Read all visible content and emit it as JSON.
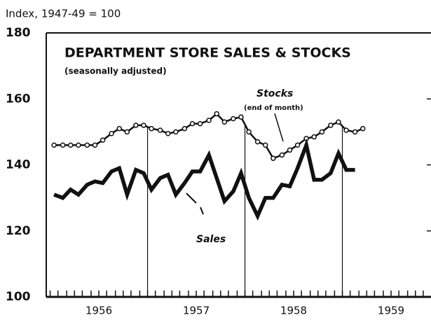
{
  "chart_data": {
    "type": "line",
    "title": "DEPARTMENT STORE SALES & STOCKS",
    "subtitle": "(seasonally adjusted)",
    "y_label": "Index, 1947-49 = 100",
    "annotations": {
      "stocks": "Stocks",
      "stocks_note": "(end of month)",
      "sales": "Sales"
    },
    "x": [
      1956.04,
      1956.13,
      1956.21,
      1956.29,
      1956.38,
      1956.46,
      1956.54,
      1956.63,
      1956.71,
      1956.79,
      1956.88,
      1956.96,
      1957.04,
      1957.13,
      1957.21,
      1957.29,
      1957.38,
      1957.46,
      1957.54,
      1957.63,
      1957.71,
      1957.79,
      1957.88,
      1957.96,
      1958.04,
      1958.13,
      1958.21,
      1958.29,
      1958.38,
      1958.46,
      1958.54,
      1958.63,
      1958.71,
      1958.79,
      1958.88,
      1958.96,
      1959.04,
      1959.13,
      1959.21
    ],
    "series": [
      {
        "name": "Stocks",
        "color": "#111111",
        "marker": "open-circle",
        "values": [
          146,
          146,
          146,
          146,
          146,
          146,
          147.5,
          149.5,
          151,
          150,
          152,
          152,
          151,
          150.5,
          149.5,
          150,
          151,
          152.5,
          152.5,
          153.5,
          155.5,
          153,
          154,
          154.5,
          150,
          147,
          146,
          142,
          143,
          144.5,
          146,
          148,
          148.5,
          150,
          152,
          153,
          150.5,
          150,
          151
        ]
      },
      {
        "name": "Sales",
        "color": "#111111",
        "values": [
          131,
          130,
          132.5,
          131,
          134,
          135,
          134.5,
          138,
          139,
          131,
          138.5,
          137.5,
          132.5,
          136,
          137,
          131,
          134.5,
          138,
          138,
          143,
          136,
          129,
          132,
          137.5,
          130,
          124.5,
          130,
          130,
          134,
          133.5,
          139,
          146,
          135.5,
          135.5,
          137.5,
          143.5,
          138.5,
          138.5,
          null
        ]
      }
    ],
    "xlim": [
      1955.96,
      1959.91
    ],
    "xticks": [
      {
        "value": 1956.5,
        "label": "1956"
      },
      {
        "value": 1957.5,
        "label": "1957"
      },
      {
        "value": 1958.5,
        "label": "1958"
      },
      {
        "value": 1959.5,
        "label": "1959"
      }
    ],
    "xminorticks": [
      1956,
      1956.08,
      1956.17,
      1956.25,
      1956.33,
      1956.42,
      1956.5,
      1956.58,
      1956.67,
      1956.75,
      1956.83,
      1956.92,
      1957,
      1957.08,
      1957.17,
      1957.25,
      1957.33,
      1957.42,
      1957.5,
      1957.58,
      1957.67,
      1957.75,
      1957.83,
      1957.92,
      1958,
      1958.08,
      1958.17,
      1958.25,
      1958.33,
      1958.42,
      1958.5,
      1958.58,
      1958.67,
      1958.75,
      1958.83,
      1958.92,
      1959,
      1959.08,
      1959.17,
      1959.25,
      1959.33,
      1959.42,
      1959.5,
      1959.58,
      1959.67,
      1959.75,
      1959.83
    ],
    "year_lines": [
      1957,
      1958,
      1959
    ],
    "ylim": [
      100,
      180
    ],
    "yticks": [
      100,
      120,
      140,
      160,
      180
    ]
  }
}
